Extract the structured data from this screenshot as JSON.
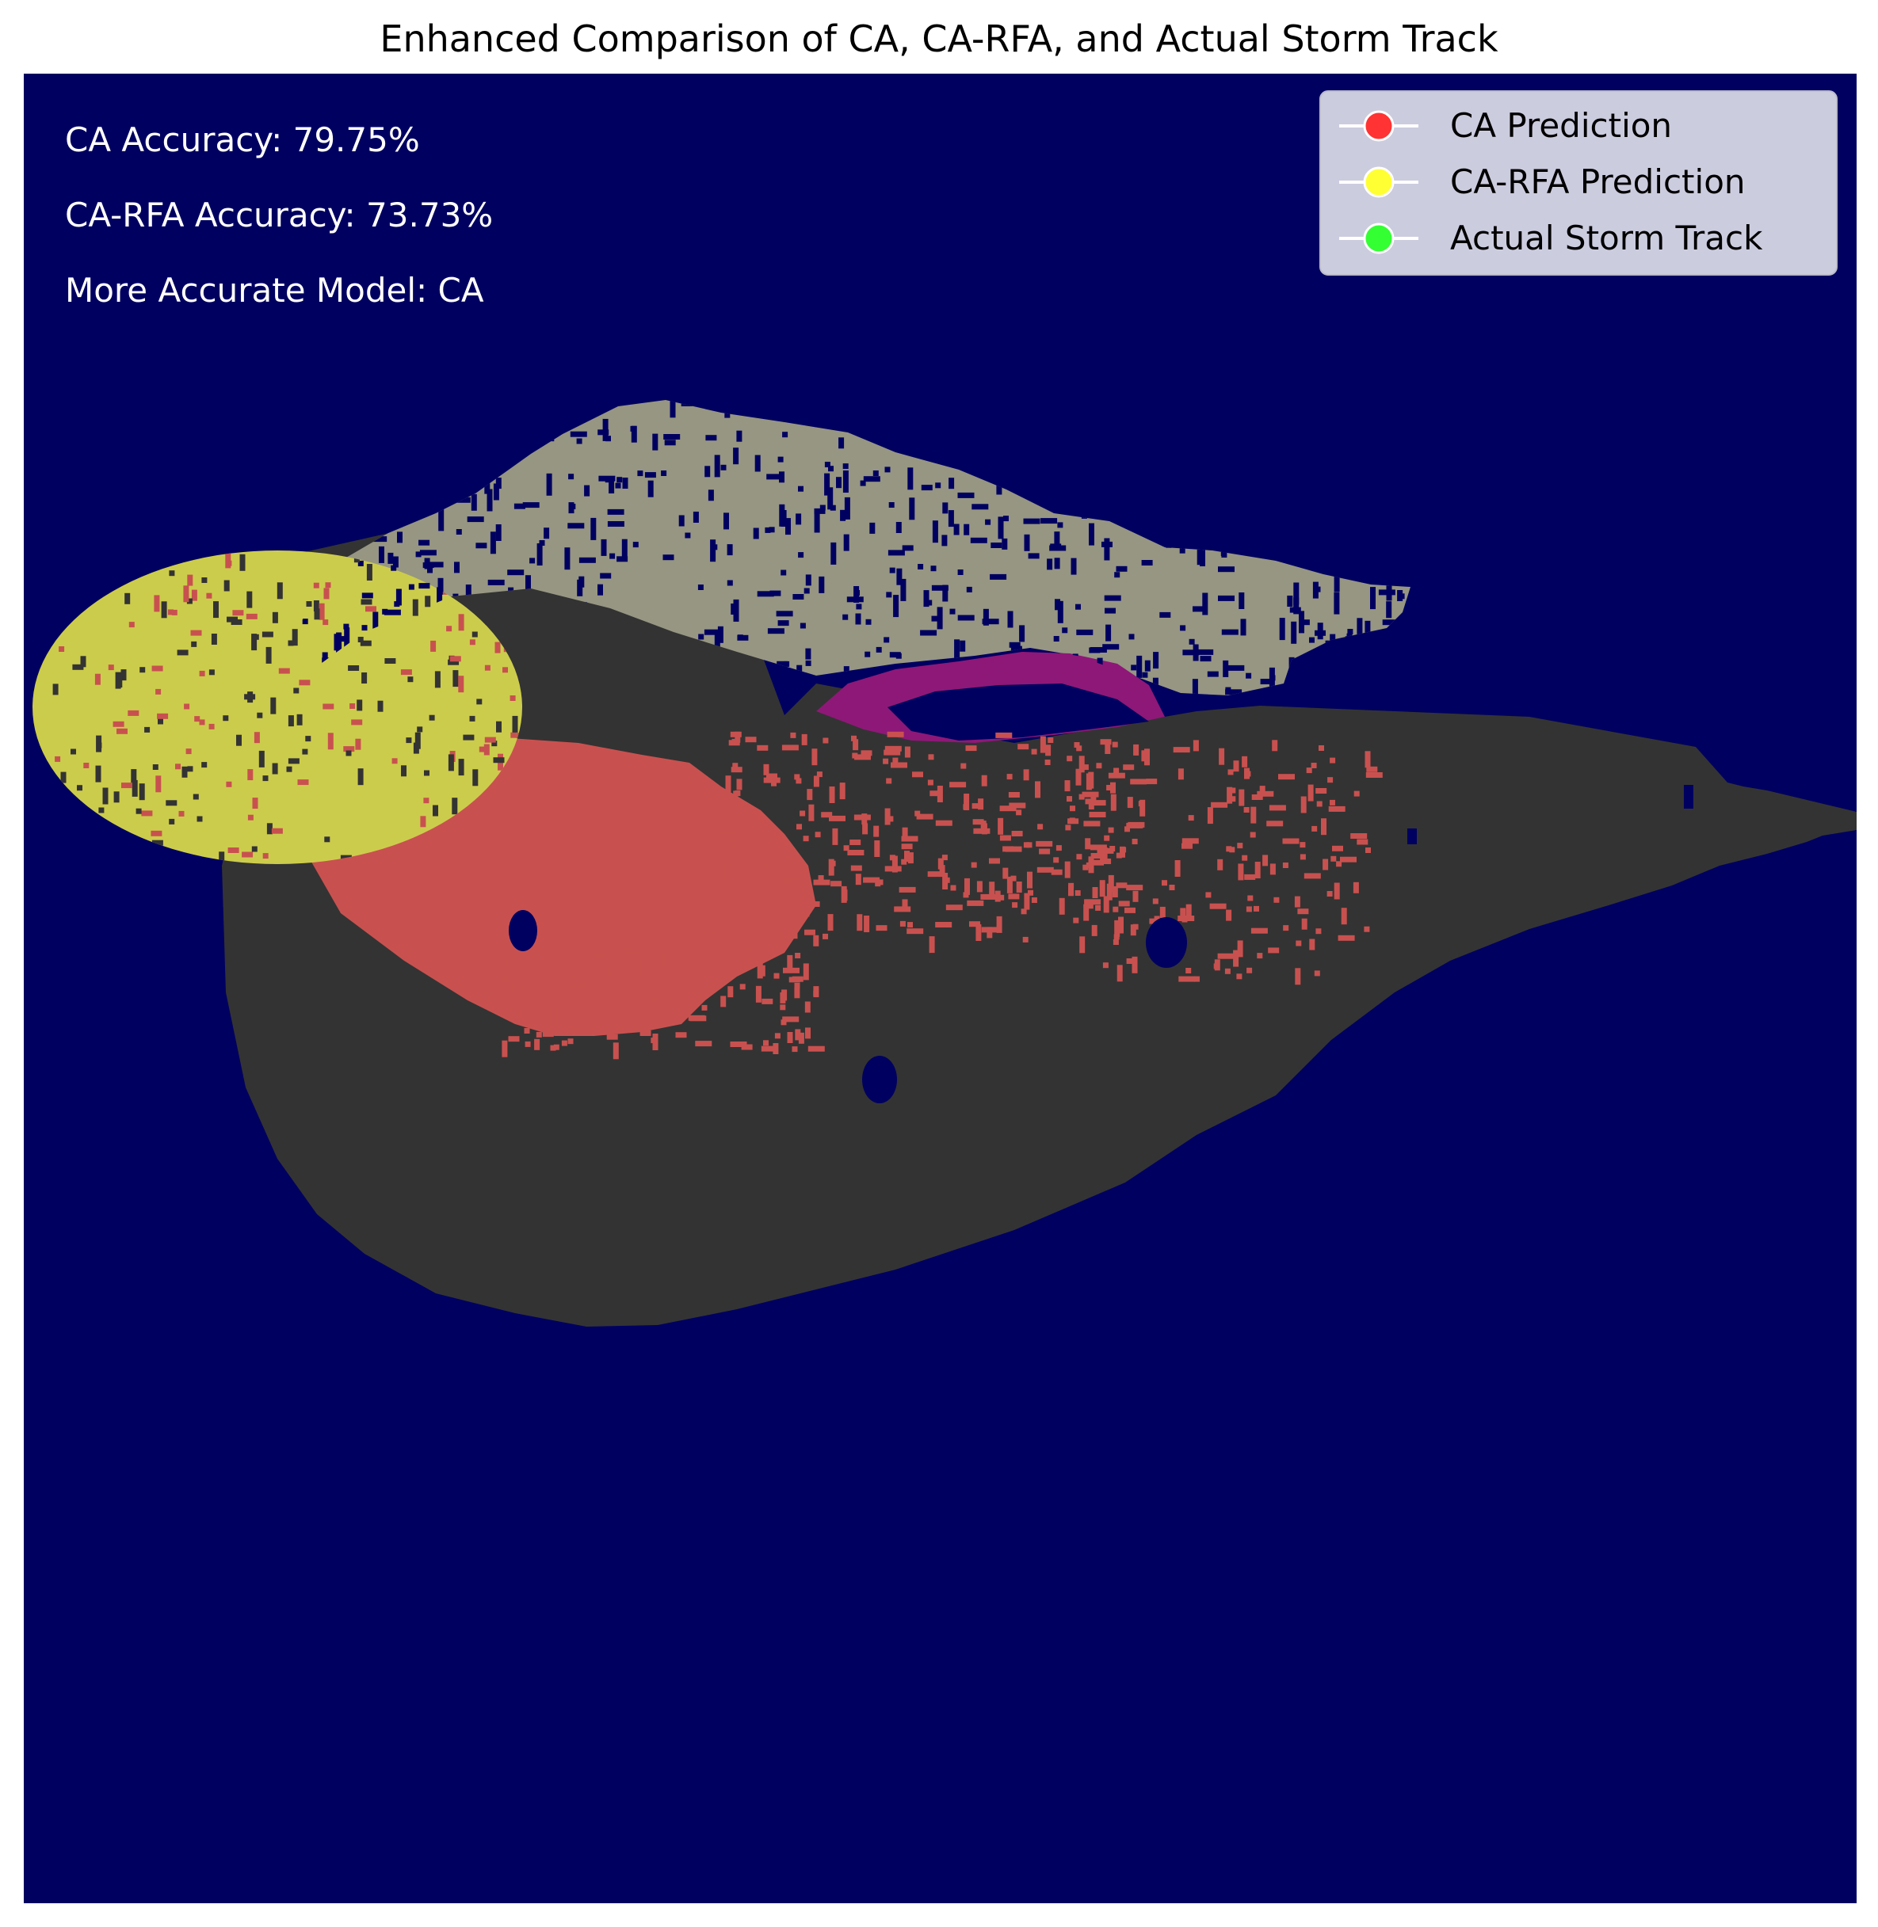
{
  "chart_data": {
    "type": "heatmap",
    "title": "Enhanced Comparison of CA, CA-RFA, and Actual Storm Track",
    "xlabel": "",
    "ylabel": "",
    "axes_visible": false,
    "grid": false,
    "background_color": "#000060",
    "annotations": [
      "CA Accuracy: 79.75%",
      "CA-RFA Accuracy: 73.73%",
      "More Accurate Model: CA"
    ],
    "annotation_color": "#ffffff",
    "legend": {
      "placement": "top-right",
      "entries": [
        {
          "label": "CA Prediction",
          "color": "#ff3333"
        },
        {
          "label": "CA-RFA Prediction",
          "color": "#ffff33"
        },
        {
          "label": "Actual Storm Track",
          "color": "#33ff33"
        }
      ]
    },
    "regions": [
      {
        "name": "Actual Storm Track",
        "rendered_color": "#333333"
      },
      {
        "name": "CA Prediction",
        "rendered_color": "#c8514f"
      },
      {
        "name": "CA-RFA Prediction",
        "rendered_color": "#cccc4c"
      },
      {
        "name": "overlap",
        "rendered_color": "#969683"
      },
      {
        "name": "overlap",
        "rendered_color": "#8e1877"
      }
    ],
    "accuracy": [
      {
        "model": "CA",
        "percent": 79.75
      },
      {
        "model": "CA-RFA",
        "percent": 73.73
      }
    ],
    "more_accurate_model": "CA"
  }
}
